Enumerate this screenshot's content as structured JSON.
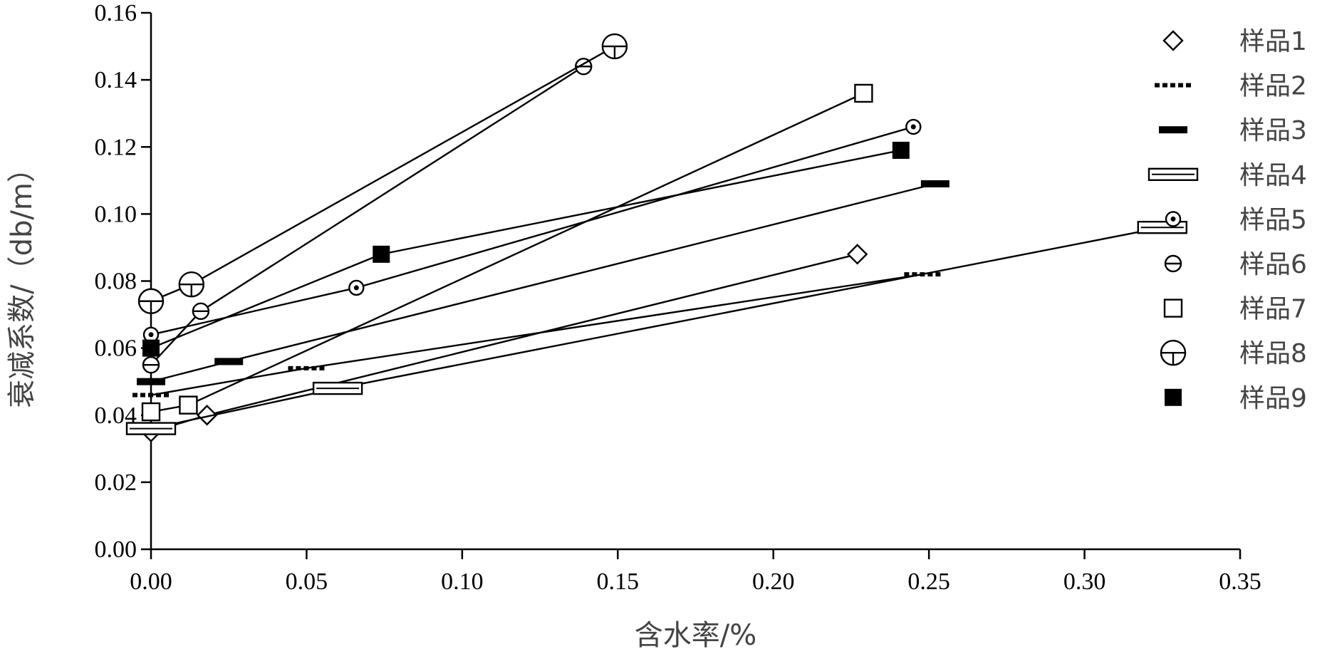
{
  "chart_data": {
    "type": "line",
    "title": "",
    "xlabel": "含水率/%",
    "ylabel": "衰减系数/（db/m）",
    "xlim": [
      0,
      0.35
    ],
    "ylim": [
      0,
      0.16
    ],
    "xticks": [
      0.0,
      0.05,
      0.1,
      0.15,
      0.2,
      0.25,
      0.3,
      0.35
    ],
    "yticks": [
      0.0,
      0.02,
      0.04,
      0.06,
      0.08,
      0.1,
      0.12,
      0.14,
      0.16
    ],
    "xtick_labels": [
      "0.00",
      "0.05",
      "0.10",
      "0.15",
      "0.20",
      "0.25",
      "0.30",
      "0.35"
    ],
    "ytick_labels": [
      "0.00",
      "0.02",
      "0.04",
      "0.06",
      "0.08",
      "0.10",
      "0.12",
      "0.14",
      "0.16"
    ],
    "grid": false,
    "legend_position": "right",
    "series": [
      {
        "name": "样品1",
        "marker": "diamond",
        "x": [
          0.0,
          0.018,
          0.227
        ],
        "y": [
          0.035,
          0.04,
          0.088
        ]
      },
      {
        "name": "样品2",
        "marker": "dash-dot",
        "x": [
          0.0,
          0.05,
          0.248
        ],
        "y": [
          0.046,
          0.054,
          0.082
        ]
      },
      {
        "name": "样品3",
        "marker": "thick-dash",
        "x": [
          0.0,
          0.025,
          0.252
        ],
        "y": [
          0.05,
          0.056,
          0.109
        ]
      },
      {
        "name": "样品4",
        "marker": "open-rect",
        "x": [
          0.0,
          0.06,
          0.325
        ],
        "y": [
          0.036,
          0.048,
          0.096
        ]
      },
      {
        "name": "样品5",
        "marker": "dotted-circle",
        "x": [
          0.0,
          0.066,
          0.245
        ],
        "y": [
          0.064,
          0.078,
          0.126
        ]
      },
      {
        "name": "样品6",
        "marker": "bar-circle",
        "x": [
          0.0,
          0.016,
          0.139
        ],
        "y": [
          0.055,
          0.071,
          0.144
        ]
      },
      {
        "name": "样品7",
        "marker": "open-square",
        "x": [
          0.0,
          0.012,
          0.229
        ],
        "y": [
          0.041,
          0.043,
          0.136
        ]
      },
      {
        "name": "样品8",
        "marker": "crossed-circle",
        "x": [
          0.0,
          0.013,
          0.149
        ],
        "y": [
          0.074,
          0.079,
          0.15
        ]
      },
      {
        "name": "样品9",
        "marker": "filled-square",
        "x": [
          0.0,
          0.074,
          0.241
        ],
        "y": [
          0.06,
          0.088,
          0.119
        ]
      }
    ]
  }
}
